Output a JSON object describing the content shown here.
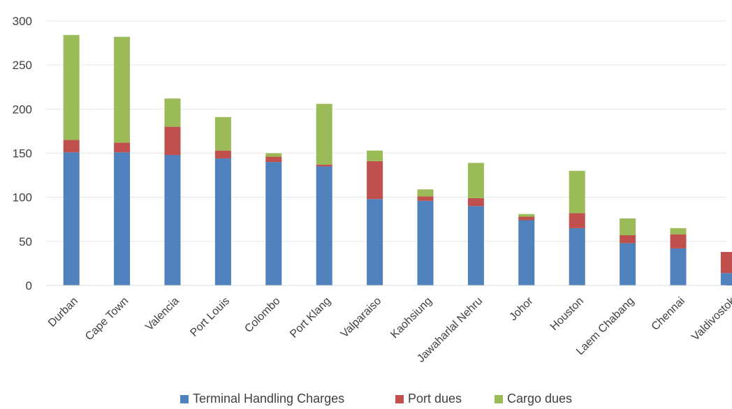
{
  "chart_data": {
    "type": "bar",
    "stacked": true,
    "title": "",
    "xlabel": "",
    "ylabel": "",
    "ylim": [
      0,
      300
    ],
    "yticks": [
      0,
      50,
      100,
      150,
      200,
      250,
      300
    ],
    "grid": true,
    "legend_position": "bottom",
    "categories": [
      "Durban",
      "Cape Town",
      "Valencia",
      "Port Louis",
      "Colombo",
      "Port Klang",
      "Valparaiso",
      "Kaohsiung",
      "Jawaharlal Nehru",
      "Johor",
      "Houston",
      "Laem Chabang",
      "Chennai",
      "Valdivostok"
    ],
    "series": [
      {
        "name": "Terminal Handling Charges",
        "color": "#4F81BD",
        "values": [
          151,
          151,
          148,
          144,
          140,
          135,
          98,
          96,
          90,
          74,
          65,
          48,
          42,
          14
        ]
      },
      {
        "name": "Port dues",
        "color": "#C0504D",
        "values": [
          14,
          11,
          32,
          9,
          6,
          2,
          43,
          5,
          9,
          4,
          17,
          9,
          16,
          24
        ]
      },
      {
        "name": "Cargo dues",
        "color": "#9BBB59",
        "values": [
          119,
          120,
          32,
          38,
          4,
          69,
          12,
          8,
          40,
          3,
          48,
          19,
          7,
          0
        ]
      }
    ]
  }
}
